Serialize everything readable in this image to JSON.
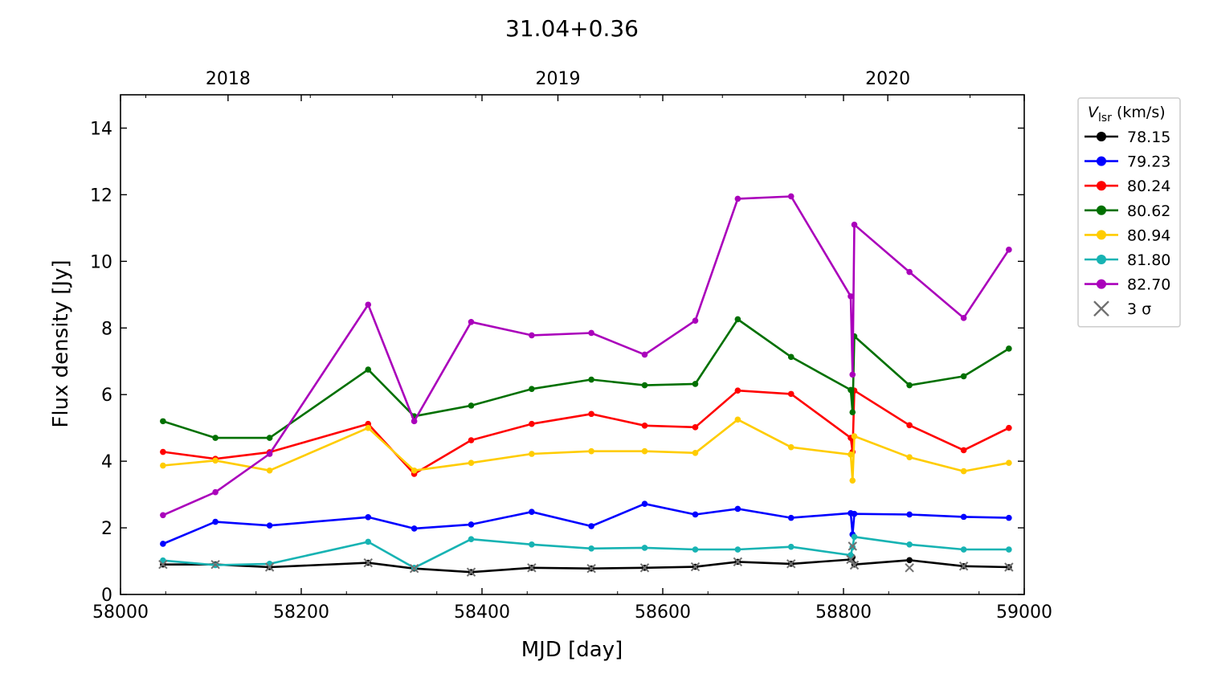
{
  "chart_data": {
    "type": "line",
    "title": "31.04+0.36",
    "xlabel": "MJD [day]",
    "ylabel": "Flux density [Jy]",
    "xlim": [
      58000,
      59000
    ],
    "ylim": [
      0,
      15
    ],
    "x_ticks": [
      58000,
      58200,
      58400,
      58600,
      58800,
      59000
    ],
    "y_ticks": [
      0,
      2,
      4,
      6,
      8,
      10,
      12,
      14
    ],
    "top_axis": {
      "label_positions_mjd": [
        58119,
        58484,
        58849
      ],
      "labels": [
        "2018",
        "2019",
        "2020"
      ]
    },
    "grid": false,
    "legend": {
      "placement": "outside-right-top",
      "title_symbol": "V",
      "title_subscript": "lsr",
      "title_unit": " (km/s)",
      "sigma_label": "3 σ",
      "sigma_color": "#707070"
    },
    "x": [
      58047,
      58105,
      58165,
      58274,
      58325,
      58388,
      58455,
      58521,
      58580,
      58636,
      58683,
      58742,
      58808,
      58810,
      58812,
      58873,
      58933,
      58983
    ],
    "series": [
      {
        "name": "78.15",
        "color": "#000000",
        "values": [
          0.9,
          0.9,
          0.82,
          0.95,
          0.78,
          0.67,
          0.8,
          0.78,
          0.8,
          0.83,
          0.98,
          0.92,
          1.05,
          1.12,
          0.9,
          1.03,
          0.85,
          0.82
        ]
      },
      {
        "name": "79.23",
        "color": "#0000ff",
        "values": [
          1.52,
          2.18,
          2.07,
          2.32,
          1.98,
          2.1,
          2.48,
          2.05,
          2.72,
          2.4,
          2.57,
          2.3,
          2.44,
          1.8,
          2.42,
          2.4,
          2.33,
          2.3
        ]
      },
      {
        "name": "80.24",
        "color": "#ff0000",
        "values": [
          4.28,
          4.07,
          4.27,
          5.12,
          3.62,
          4.63,
          5.12,
          5.42,
          5.07,
          5.02,
          6.12,
          6.02,
          4.7,
          4.28,
          6.12,
          5.08,
          4.33,
          5.0
        ]
      },
      {
        "name": "80.62",
        "color": "#007000",
        "values": [
          5.2,
          4.7,
          4.7,
          6.75,
          5.35,
          5.67,
          6.17,
          6.45,
          6.28,
          6.32,
          8.26,
          7.13,
          6.14,
          5.47,
          7.75,
          6.28,
          6.55,
          7.38
        ]
      },
      {
        "name": "80.94",
        "color": "#ffcc00",
        "values": [
          3.87,
          4.02,
          3.72,
          5.0,
          3.72,
          3.95,
          4.22,
          4.3,
          4.3,
          4.25,
          5.25,
          4.42,
          4.2,
          3.42,
          4.75,
          4.12,
          3.7,
          3.95
        ]
      },
      {
        "name": "81.80",
        "color": "#17b3b3",
        "values": [
          1.02,
          0.88,
          0.92,
          1.58,
          0.8,
          1.66,
          1.5,
          1.38,
          1.4,
          1.35,
          1.35,
          1.43,
          1.18,
          1.42,
          1.73,
          1.5,
          1.35,
          1.35
        ]
      },
      {
        "name": "82.70",
        "color": "#aa00bb",
        "values": [
          2.38,
          3.07,
          4.22,
          8.7,
          5.2,
          8.18,
          7.78,
          7.85,
          7.2,
          8.22,
          11.88,
          11.95,
          8.95,
          6.6,
          11.1,
          9.68,
          8.3,
          10.35
        ]
      }
    ],
    "upper_limits_3sigma": {
      "x": [
        58047,
        58105,
        58165,
        58274,
        58325,
        58388,
        58455,
        58521,
        58580,
        58636,
        58683,
        58742,
        58808,
        58810,
        58812,
        58873,
        58933,
        58983
      ],
      "y": [
        0.9,
        0.9,
        0.82,
        0.95,
        0.78,
        0.67,
        0.8,
        0.78,
        0.8,
        0.83,
        0.98,
        0.92,
        1.05,
        1.45,
        0.88,
        0.8,
        0.85,
        0.82
      ]
    }
  }
}
